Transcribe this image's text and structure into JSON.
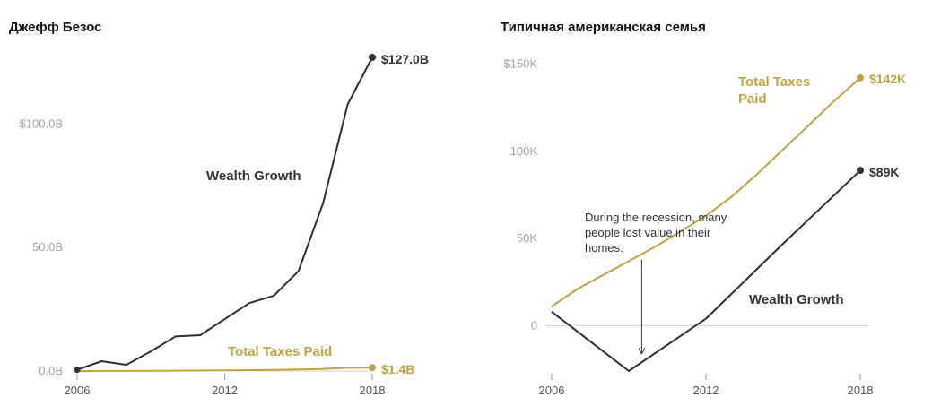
{
  "colors": {
    "dark": "#2f2f2f",
    "gold": "#c2a242",
    "grid": "#d6d6d6",
    "muted": "#a3a3a3"
  },
  "chart_data": [
    {
      "type": "line",
      "title": "Джефф Безос",
      "xlabel": "",
      "ylabel": "",
      "xlim": [
        2006,
        2018
      ],
      "ylim": [
        0,
        127
      ],
      "xticks": [
        "2006",
        "2012",
        "2018"
      ],
      "yticks": [
        {
          "value": 0,
          "label": "0.0B"
        },
        {
          "value": 50,
          "label": "50.0B"
        },
        {
          "value": 100,
          "label": "$100.0B"
        }
      ],
      "series": [
        {
          "name": "Wealth Growth",
          "label": "Wealth Growth",
          "end_label": "$127.0B",
          "color": "dark",
          "points": [
            [
              2006,
              0.5
            ],
            [
              2007,
              4.0
            ],
            [
              2008,
              2.5
            ],
            [
              2009,
              8.0
            ],
            [
              2010,
              14.0
            ],
            [
              2011,
              14.5
            ],
            [
              2012,
              21.0
            ],
            [
              2013,
              27.5
            ],
            [
              2014,
              30.5
            ],
            [
              2015,
              40.5
            ],
            [
              2016,
              68.0
            ],
            [
              2017,
              108.0
            ],
            [
              2018,
              127.0
            ]
          ]
        },
        {
          "name": "Total Taxes Paid",
          "label": "Total Taxes Paid",
          "end_label": "$1.4B",
          "color": "gold",
          "points": [
            [
              2006,
              0.0
            ],
            [
              2008,
              0.05
            ],
            [
              2010,
              0.15
            ],
            [
              2012,
              0.25
            ],
            [
              2014,
              0.45
            ],
            [
              2015,
              0.6
            ],
            [
              2016,
              0.85
            ],
            [
              2017,
              1.3
            ],
            [
              2018,
              1.4
            ]
          ]
        }
      ]
    },
    {
      "type": "line",
      "title": "Типичная американская семья",
      "xlabel": "",
      "ylabel": "",
      "xlim": [
        2006,
        2018
      ],
      "ylim": [
        -26,
        142
      ],
      "xticks": [
        "2006",
        "2012",
        "2018"
      ],
      "yticks": [
        {
          "value": 0,
          "label": "0"
        },
        {
          "value": 50,
          "label": "50K"
        },
        {
          "value": 100,
          "label": "100K"
        },
        {
          "value": 150,
          "label": "$150K"
        }
      ],
      "series": [
        {
          "name": "Total Taxes Paid",
          "label_lines": [
            "Total Taxes",
            "Paid"
          ],
          "end_label": "$142K",
          "color": "gold",
          "points": [
            [
              2006,
              11
            ],
            [
              2007,
              21
            ],
            [
              2008,
              29
            ],
            [
              2009,
              37
            ],
            [
              2010,
              45
            ],
            [
              2011,
              54
            ],
            [
              2012,
              63
            ],
            [
              2013,
              74
            ],
            [
              2014,
              87
            ],
            [
              2015,
              101
            ],
            [
              2016,
              115
            ],
            [
              2017,
              129
            ],
            [
              2018,
              142
            ]
          ]
        },
        {
          "name": "Wealth Growth",
          "label": "Wealth Growth",
          "end_label": "$89K",
          "color": "dark",
          "points": [
            [
              2006,
              8
            ],
            [
              2009,
              -26
            ],
            [
              2012,
              4
            ],
            [
              2015,
              47
            ],
            [
              2018,
              89
            ]
          ]
        }
      ],
      "annotation": {
        "lines": [
          "During the recession, many",
          "people lost value in their",
          "homes."
        ],
        "x": 2009.5,
        "y_from": 38,
        "y_to": -16
      }
    }
  ]
}
